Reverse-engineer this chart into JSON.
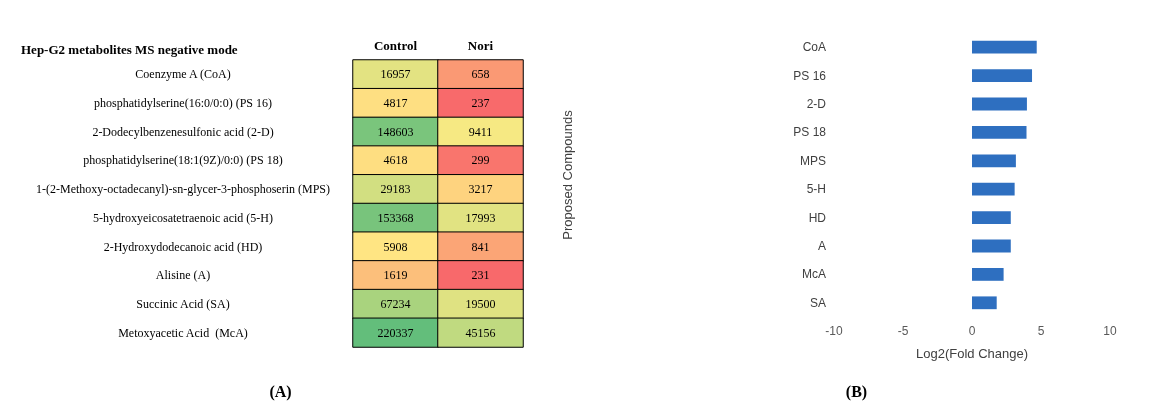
{
  "chart_data": [
    {
      "type": "heatmap",
      "title": "Hep-G2 metabolites MS negative mode",
      "categories": [
        "Control",
        "Nori"
      ],
      "y_categories": [
        "Coenzyme A (CoA)",
        "phosphatidylserine(16:0/0:0) (PS 16)",
        "2-Dodecylbenzenesulfonic acid (2-D)",
        "phosphatidylserine(18:1(9Z)/0:0) (PS 18)",
        "1-(2-Methoxy-octadecanyl)-sn-glycer-3-phosphoserin (MPS)",
        "5-hydroxyeicosatetraenoic acid (5-H)",
        "2-Hydroxydodecanoic acid (HD)",
        "Alisine (A)",
        "Succinic Acid (SA)",
        "Metoxyacetic Acid  (McA)"
      ],
      "cells": [
        [
          16957,
          658
        ],
        [
          4817,
          237
        ],
        [
          148603,
          9411
        ],
        [
          4618,
          299
        ],
        [
          29183,
          3217
        ],
        [
          153368,
          17993
        ],
        [
          5908,
          841
        ],
        [
          1619,
          231
        ],
        [
          67234,
          19500
        ],
        [
          220337,
          45156
        ]
      ],
      "data_labels": true,
      "annotations": [
        "(A)"
      ]
    },
    {
      "type": "bar",
      "orientation": "horizontal",
      "categories": [
        "CoA",
        "PS 16",
        "2-D",
        "PS 18",
        "MPS",
        "5-H",
        "HD",
        "A",
        "McA",
        "SA"
      ],
      "values": [
        4.69,
        4.35,
        3.98,
        3.95,
        3.18,
        3.09,
        2.81,
        2.81,
        2.29,
        1.79
      ],
      "color": "#2e6fc0",
      "xlim": [
        -10,
        10
      ],
      "xticks": [
        -10,
        -5,
        0,
        5,
        10
      ],
      "xlabel": "Log2(Fold Change)",
      "ylabel": "Proposed Compounds",
      "grid": false,
      "annotations": [
        "(B)"
      ]
    }
  ]
}
